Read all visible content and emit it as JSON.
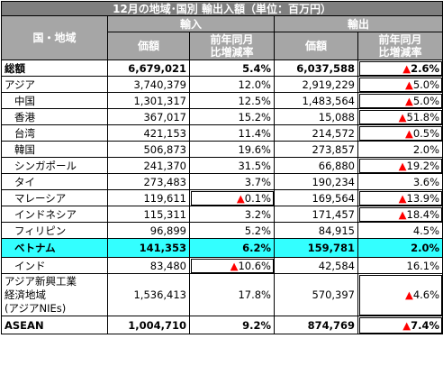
{
  "title": "12月の地域･国別 輸出入額（単位：百万円）",
  "headers": {
    "region": "国・地域",
    "imports": "輸入",
    "exports": "輸出",
    "value": "価額",
    "yoy_line1": "前年同月",
    "yoy_line2": "比増減率"
  },
  "rows": [
    {
      "name": "総額",
      "imp": "6,679,021",
      "imp_chg": "5.4%",
      "exp": "6,037,588",
      "exp_chg": "▲2.6%"
    },
    {
      "name": "アジア",
      "imp": "3,740,379",
      "imp_chg": "12.0%",
      "exp": "2,919,229",
      "exp_chg": "▲5.0%"
    },
    {
      "name": "中国",
      "imp": "1,301,317",
      "imp_chg": "12.5%",
      "exp": "1,483,564",
      "exp_chg": "▲5.0%"
    },
    {
      "name": "香港",
      "imp": "367,017",
      "imp_chg": "15.2%",
      "exp": "15,088",
      "exp_chg": "▲51.8%"
    },
    {
      "name": "台湾",
      "imp": "421,153",
      "imp_chg": "11.4%",
      "exp": "214,572",
      "exp_chg": "▲0.5%"
    },
    {
      "name": "韓国",
      "imp": "506,873",
      "imp_chg": "19.6%",
      "exp": "273,857",
      "exp_chg": "2.0%"
    },
    {
      "name": "シンガポール",
      "imp": "241,370",
      "imp_chg": "31.5%",
      "exp": "66,880",
      "exp_chg": "▲19.2%"
    },
    {
      "name": "タイ",
      "imp": "273,483",
      "imp_chg": "3.7%",
      "exp": "190,234",
      "exp_chg": "3.6%"
    },
    {
      "name": "マレーシア",
      "imp": "119,611",
      "imp_chg": "▲0.1%",
      "exp": "169,564",
      "exp_chg": "▲13.9%"
    },
    {
      "name": "インドネシア",
      "imp": "115,311",
      "imp_chg": "3.2%",
      "exp": "171,457",
      "exp_chg": "▲18.4%"
    },
    {
      "name": "フィリピン",
      "imp": "96,899",
      "imp_chg": "5.2%",
      "exp": "84,915",
      "exp_chg": "4.5%"
    },
    {
      "name": "ベトナム",
      "imp": "141,353",
      "imp_chg": "6.2%",
      "exp": "159,781",
      "exp_chg": "2.0%"
    },
    {
      "name": "インド",
      "imp": "83,480",
      "imp_chg": "▲10.6%",
      "exp": "42,584",
      "exp_chg": "16.1%"
    },
    {
      "name_lines": [
        "アジア新興工業",
        "経済地域",
        "(アジアNIEs)"
      ],
      "imp": "1,536,413",
      "imp_chg": "17.8%",
      "exp": "570,397",
      "exp_chg": "▲4.6%"
    },
    {
      "name": "ASEAN",
      "imp": "1,004,710",
      "imp_chg": "9.2%",
      "exp": "874,769",
      "exp_chg": "▲7.4%"
    }
  ]
}
